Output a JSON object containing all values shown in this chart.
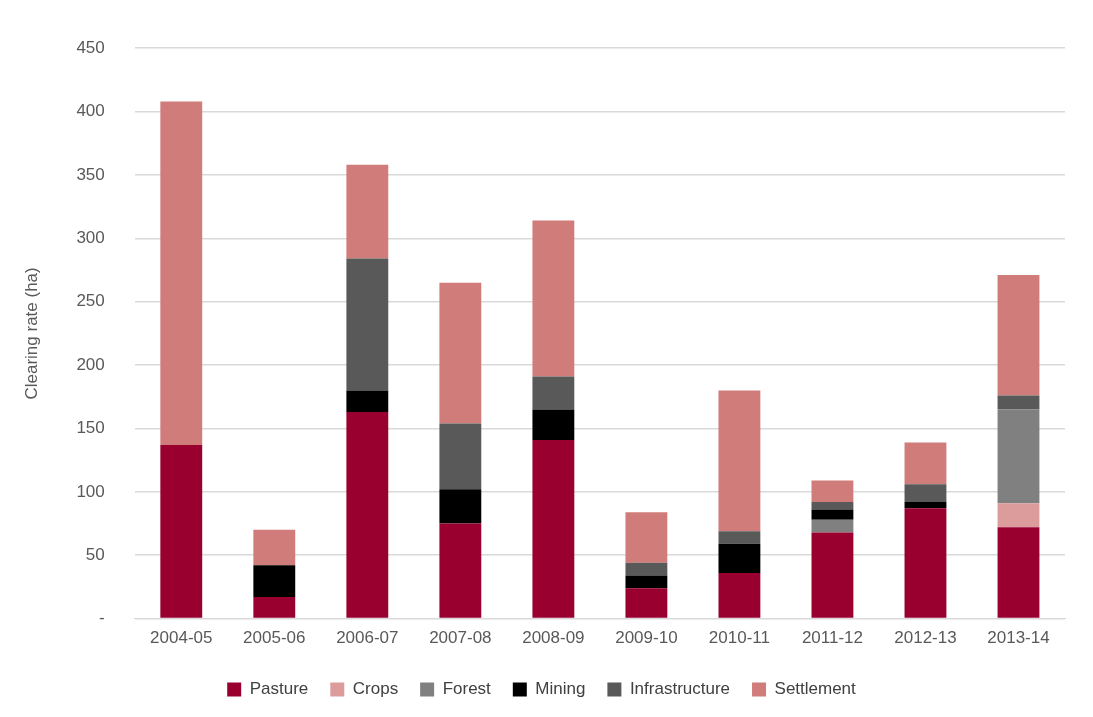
{
  "chart_data": {
    "type": "bar",
    "stacked": true,
    "ylabel": "Clearing rate (ha)",
    "categories": [
      "2004-05",
      "2005-06",
      "2006-07",
      "2007-08",
      "2008-09",
      "2009-10",
      "2010-11",
      "2011-12",
      "2012-13",
      "2013-14"
    ],
    "series": [
      {
        "name": "Pasture",
        "color": "#990030",
        "values": [
          137,
          17,
          163,
          75,
          141,
          24,
          36,
          68,
          87,
          72
        ]
      },
      {
        "name": "Crops",
        "color": "#dc9c9c",
        "values": [
          0,
          0,
          0,
          0,
          0,
          0,
          0,
          0,
          0,
          19
        ]
      },
      {
        "name": "Forest",
        "color": "#808080",
        "values": [
          0,
          0,
          0,
          0,
          0,
          0,
          0,
          10,
          0,
          74
        ]
      },
      {
        "name": "Mining",
        "color": "#000000",
        "values": [
          0,
          25,
          17,
          27,
          24,
          10,
          23,
          8,
          5,
          0
        ]
      },
      {
        "name": "Infrastructure",
        "color": "#595959",
        "values": [
          0,
          0,
          104,
          52,
          26,
          10,
          10,
          6,
          14,
          11
        ]
      },
      {
        "name": "Settlement",
        "color": "#d07c7a",
        "values": [
          271,
          28,
          74,
          111,
          123,
          40,
          111,
          17,
          33,
          95
        ]
      }
    ],
    "ylim": [
      0,
      450
    ],
    "yticks": [
      {
        "value": 0,
        "label": "-"
      },
      50,
      100,
      150,
      200,
      250,
      300,
      350,
      400,
      450
    ],
    "grid": "y",
    "legend": "bottom"
  }
}
